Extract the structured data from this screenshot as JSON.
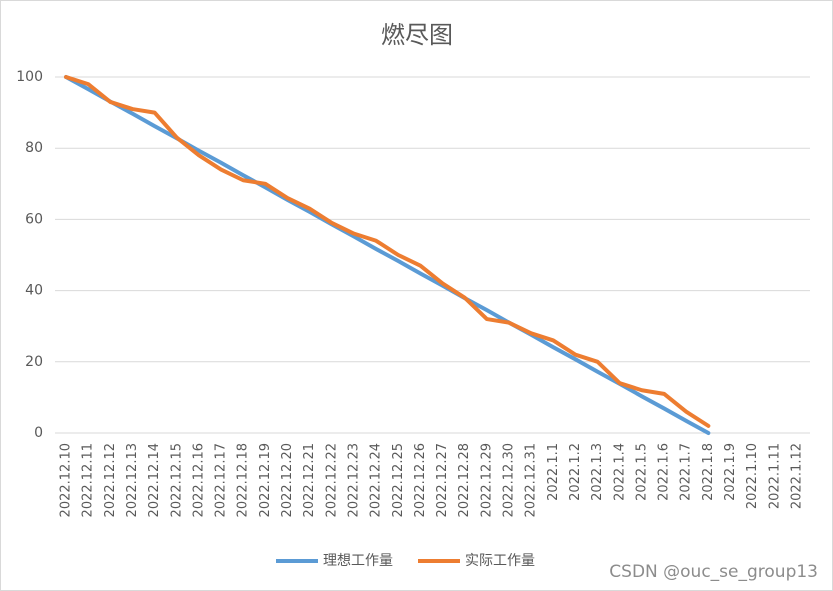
{
  "chart_data": {
    "type": "line",
    "title": "燃尽图",
    "categories": [
      "2022.12.10",
      "2022.12.11",
      "2022.12.12",
      "2022.12.13",
      "2022.12.14",
      "2022.12.15",
      "2022.12.16",
      "2022.12.17",
      "2022.12.18",
      "2022.12.19",
      "2022.12.20",
      "2022.12.21",
      "2022.12.22",
      "2022.12.23",
      "2022.12.24",
      "2022.12.25",
      "2022.12.26",
      "2022.12.27",
      "2022.12.28",
      "2022.12.29",
      "2022.12.30",
      "2022.12.31",
      "2022.1.1",
      "2022.1.2",
      "2022.1.3",
      "2022.1.4",
      "2022.1.5",
      "2022.1.6",
      "2022.1.7",
      "2022.1.8",
      "2022.1.9",
      "2022.1.10",
      "2022.1.11",
      "2022.1.12"
    ],
    "series": [
      {
        "name": "理想工作量",
        "color": "#5b9bd5",
        "values": [
          100,
          96.6,
          93.1,
          89.7,
          86.2,
          82.8,
          79.3,
          75.9,
          72.4,
          69,
          65.5,
          62.1,
          58.6,
          55.2,
          51.7,
          48.3,
          44.8,
          41.4,
          37.9,
          34.5,
          31,
          27.6,
          24.1,
          20.7,
          17.2,
          13.8,
          10.3,
          6.9,
          3.4,
          0,
          null,
          null,
          null,
          null
        ]
      },
      {
        "name": "实际工作量",
        "color": "#ed7d31",
        "values": [
          100,
          98,
          93,
          91,
          90,
          83,
          78,
          74,
          71,
          70,
          66,
          63,
          59,
          56,
          54,
          50,
          47,
          42,
          38,
          32,
          31,
          28,
          26,
          22,
          20,
          14,
          12,
          11,
          6,
          2,
          null,
          null,
          null,
          null
        ]
      }
    ],
    "ylim": [
      0,
      100
    ],
    "yticks": [
      0,
      20,
      40,
      60,
      80,
      100
    ],
    "grid": true,
    "legend": "bottom",
    "watermark": "CSDN @ouc_se_group13"
  }
}
